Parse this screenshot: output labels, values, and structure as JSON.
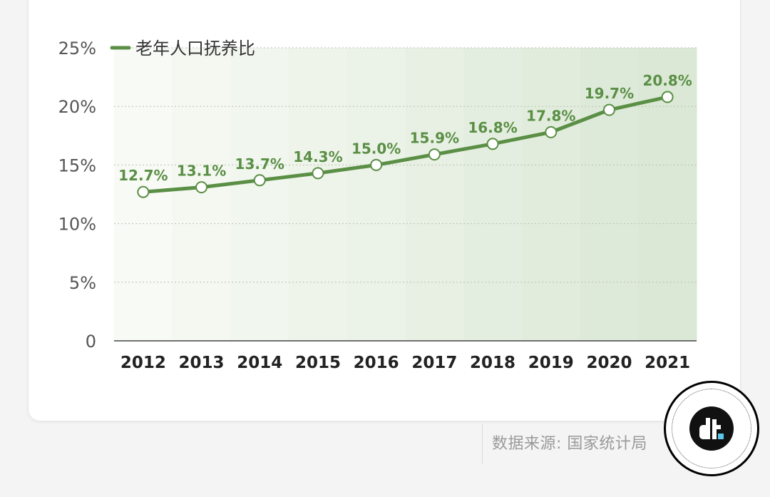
{
  "chart_data": {
    "type": "line",
    "categories": [
      "2012",
      "2013",
      "2014",
      "2015",
      "2016",
      "2017",
      "2018",
      "2019",
      "2020",
      "2021"
    ],
    "series": [
      {
        "name": "老年人口抚养比",
        "values": [
          12.7,
          13.1,
          13.7,
          14.3,
          15.0,
          15.9,
          16.8,
          17.8,
          19.7,
          20.8
        ]
      }
    ],
    "data_labels": [
      "12.7%",
      "13.1%",
      "13.7%",
      "14.3%",
      "15.0%",
      "15.9%",
      "16.8%",
      "17.8%",
      "19.7%",
      "20.8%"
    ],
    "y_ticks": [
      0,
      5,
      10,
      15,
      20,
      25
    ],
    "y_tick_labels": [
      "0",
      "5%",
      "10%",
      "15%",
      "20%",
      "25%"
    ],
    "ylim": [
      0,
      25
    ],
    "grid": true,
    "legend_position": "top-left",
    "colors": {
      "line": "#5a8f45",
      "label": "#5a8f45",
      "marker_fill": "#ffffff",
      "marker_stroke": "#5a8f45",
      "band_light": "#f7faf5",
      "band_dark": "#dbe8d5"
    }
  },
  "source": {
    "text": "数据来源: 国家统计局"
  }
}
